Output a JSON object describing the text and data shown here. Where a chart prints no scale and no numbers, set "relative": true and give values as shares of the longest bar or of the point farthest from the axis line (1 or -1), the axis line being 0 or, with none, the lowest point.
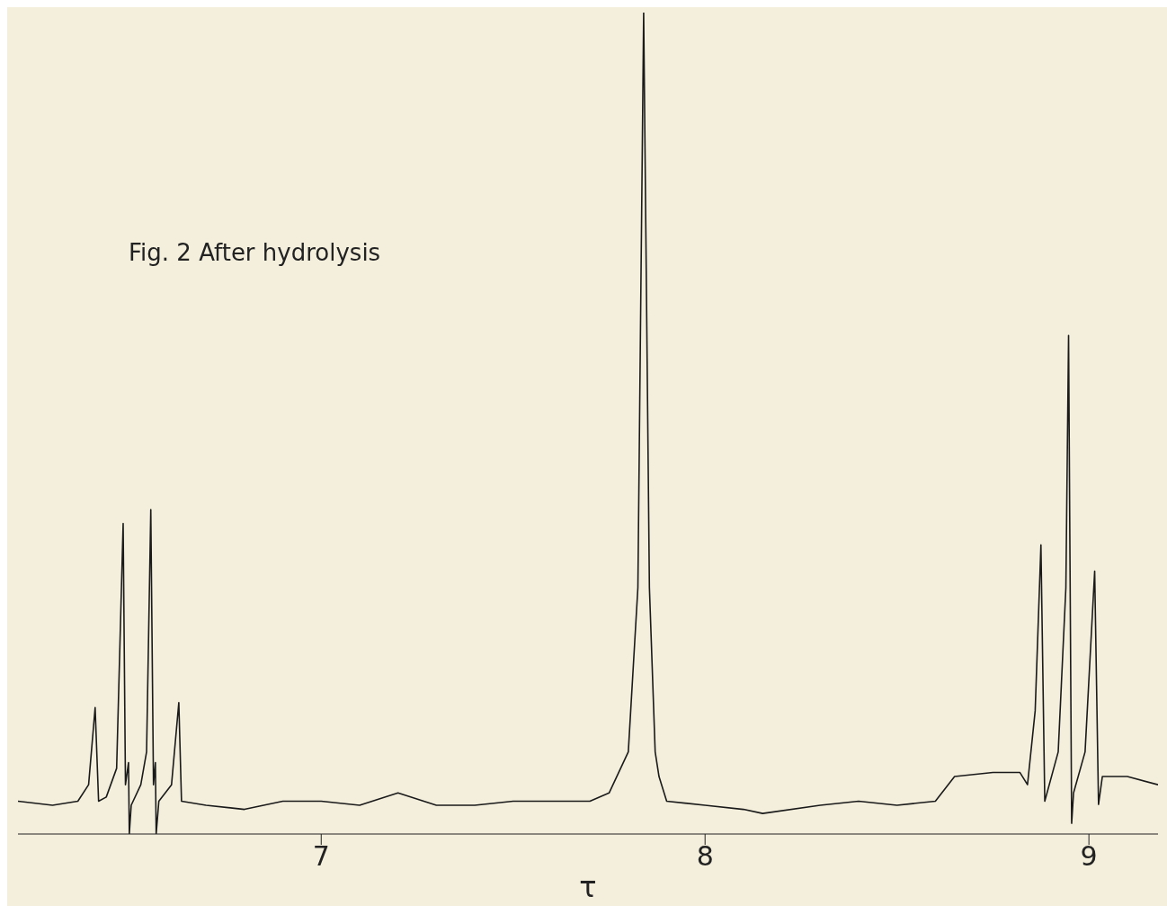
{
  "chart_data": {
    "type": "line",
    "title": "Fig. 2 After hydrolysis",
    "xlabel": "τ",
    "relative": true,
    "xlim": [
      6.21,
      9.18
    ],
    "xticks": [
      7,
      8,
      9
    ],
    "marker": "none",
    "line_style": "solid",
    "series": [
      {
        "color": "#1a1a1a",
        "x": [
          6.21,
          6.3,
          6.366,
          6.394,
          6.411,
          6.42,
          6.44,
          6.467,
          6.484,
          6.49,
          6.498,
          6.5,
          6.505,
          6.53,
          6.545,
          6.556,
          6.563,
          6.568,
          6.57,
          6.577,
          6.61,
          6.629,
          6.636,
          6.7,
          6.8,
          6.9,
          7.0,
          7.1,
          7.2,
          7.3,
          7.4,
          7.5,
          7.6,
          7.7,
          7.75,
          7.8,
          7.825,
          7.84,
          7.855,
          7.87,
          7.88,
          7.9,
          8.0,
          8.1,
          8.15,
          8.3,
          8.4,
          8.5,
          8.6,
          8.65,
          8.75,
          8.82,
          8.84,
          8.86,
          8.875,
          8.885,
          8.92,
          8.94,
          8.947,
          8.955,
          8.96,
          8.99,
          9.015,
          9.025,
          9.035,
          9.1,
          9.18
        ],
        "values": [
          0.04,
          0.035,
          0.04,
          0.06,
          0.154,
          0.04,
          0.045,
          0.08,
          0.378,
          0.06,
          0.087,
          0.0,
          0.035,
          0.06,
          0.1,
          0.395,
          0.06,
          0.087,
          0.0,
          0.04,
          0.06,
          0.16,
          0.04,
          0.035,
          0.03,
          0.04,
          0.04,
          0.035,
          0.05,
          0.035,
          0.035,
          0.04,
          0.04,
          0.04,
          0.05,
          0.1,
          0.3,
          1.0,
          0.3,
          0.1,
          0.07,
          0.04,
          0.035,
          0.03,
          0.025,
          0.035,
          0.04,
          0.035,
          0.04,
          0.07,
          0.075,
          0.075,
          0.06,
          0.15,
          0.352,
          0.04,
          0.1,
          0.3,
          0.607,
          0.013,
          0.05,
          0.1,
          0.32,
          0.036,
          0.07,
          0.07,
          0.06
        ]
      }
    ]
  }
}
